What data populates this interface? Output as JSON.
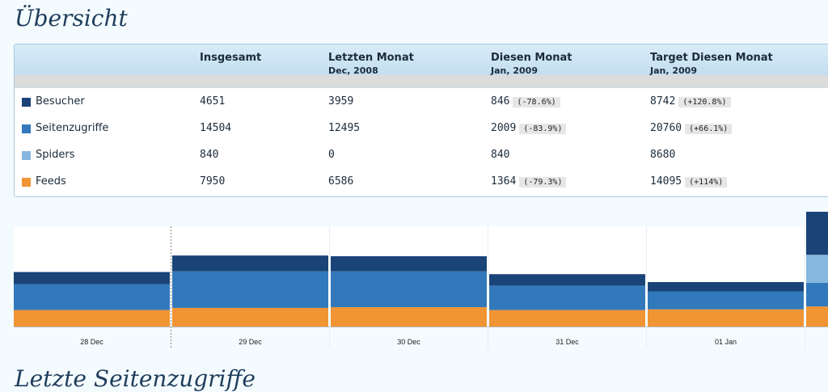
{
  "title": "Übersicht",
  "next_section_title": "Letzte Seitenzugriffe",
  "table": {
    "columns": [
      {
        "label": "Insgesamt",
        "sub": ""
      },
      {
        "label": "Letzten Monat",
        "sub": "Dec, 2008"
      },
      {
        "label": "Diesen Monat",
        "sub": "Jan, 2009"
      },
      {
        "label": "Target Diesen Monat",
        "sub": "Jan, 2009"
      }
    ],
    "rows": [
      {
        "label": "Besucher",
        "color": "#1a4378",
        "total": "4651",
        "last": "3959",
        "this": "846",
        "this_delta": "(-78.6%)",
        "target": "8742",
        "target_delta": "(+120.8%)"
      },
      {
        "label": "Seitenzugriffe",
        "color": "#3279bb",
        "total": "14504",
        "last": "12495",
        "this": "2009",
        "this_delta": "(-83.9%)",
        "target": "20760",
        "target_delta": "(+66.1%)"
      },
      {
        "label": "Spiders",
        "color": "#86b7df",
        "total": "840",
        "last": "0",
        "this": "840",
        "this_delta": "",
        "target": "8680",
        "target_delta": ""
      },
      {
        "label": "Feeds",
        "color": "#f09434",
        "total": "7950",
        "last": "6586",
        "this": "1364",
        "this_delta": "(-79.3%)",
        "target": "14095",
        "target_delta": "(+114%)"
      }
    ]
  },
  "chart_data": {
    "type": "bar",
    "stacked": true,
    "categories": [
      "28 Dec",
      "29 Dec",
      "30 Dec",
      "31 Dec",
      "01 Jan",
      ""
    ],
    "series": [
      {
        "name": "Feeds",
        "color": "#f09434",
        "values": [
          230,
          260,
          270,
          230,
          240,
          280
        ]
      },
      {
        "name": "Seitenzugriffe",
        "color": "#3279bb",
        "values": [
          360,
          510,
          500,
          340,
          250,
          330
        ]
      },
      {
        "name": "Spiders",
        "color": "#86b7df",
        "values": [
          0,
          0,
          0,
          0,
          0,
          390
        ]
      },
      {
        "name": "Besucher",
        "color": "#1a4378",
        "values": [
          170,
          220,
          210,
          160,
          130,
          610
        ]
      }
    ],
    "ylim": [
      0,
      1600
    ],
    "grid": false,
    "legend": "none"
  }
}
